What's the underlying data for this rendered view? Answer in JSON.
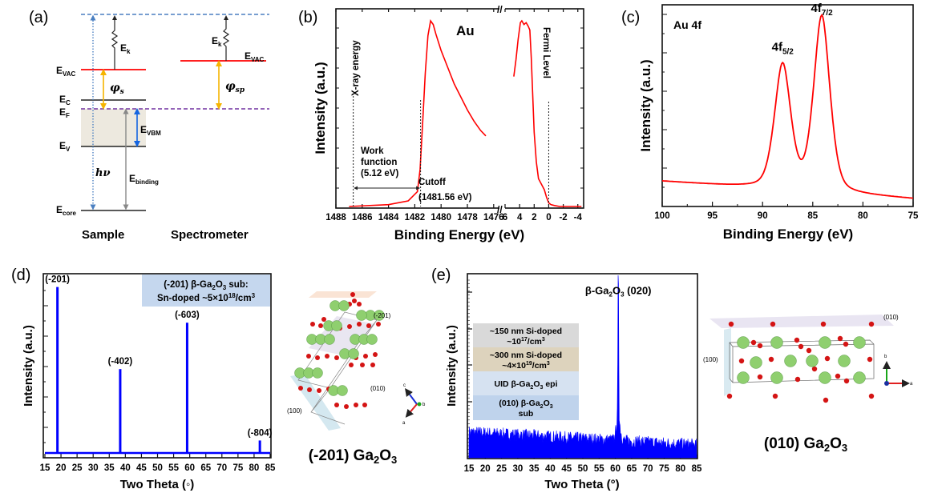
{
  "figure": {
    "panels": [
      "(a)",
      "(b)",
      "(c)",
      "(d)",
      "(e)"
    ]
  },
  "colors": {
    "xps_line": "#ff0000",
    "xrd_line": "#0000ff",
    "vacuum_level": "#ff0000",
    "work_function_arrow": "#f5b400",
    "fermi_dashed": "#7030a0",
    "top_dashed": "#4a7fc1",
    "vbm_arrow": "#1565e0",
    "binding_arrow": "#888888",
    "band_fill": "#ede9df",
    "label_box_blue": "#c5d7ee",
    "layer_gray": "#d9d9d9",
    "layer_tan": "#ddd3bd",
    "layer_lightblue": "#d6e2f1",
    "layer_blue": "#bfd3ec"
  },
  "energy_diagram": {
    "levels_sample": [
      "E_VAC",
      "E_C",
      "E_F",
      "E_V",
      "E_core"
    ],
    "labels": {
      "evac": "E",
      "evac_sub": "VAC",
      "ec": "E",
      "ec_sub": "C",
      "ef": "E",
      "ef_sub": "F",
      "ev": "E",
      "ev_sub": "V",
      "ecore": "E",
      "ecore_sub": "core",
      "ek": "E",
      "ek_sub": "k",
      "evbm": "E",
      "evbm_sub": "VBM",
      "ebind": "E",
      "ebind_sub": "binding",
      "phi_s": "φ",
      "phi_s_sub": "s",
      "phi_sp": "φ",
      "phi_sp_sub": "sp",
      "hv": "hν"
    },
    "captions": {
      "sample": "Sample",
      "spectrometer": "Spectrometer"
    }
  },
  "chart_data": [
    {
      "id": "b",
      "type": "line",
      "title": "Au",
      "xlabel": "Binding Energy (eV)",
      "ylabel": "Intensity (a.u.)",
      "broken_x_axis": true,
      "segments": [
        {
          "xlim": [
            1488,
            1475.5
          ],
          "ticks": [
            1488,
            1486,
            1484,
            1482,
            1480,
            1478,
            1476
          ],
          "tick_labels": [
            "1488",
            "1486",
            "1484",
            "1482",
            "1480",
            "1478",
            "1476"
          ],
          "x": [
            1487,
            1484,
            1482.5,
            1481.8,
            1481.6,
            1481.4,
            1481.2,
            1481.0,
            1480.8,
            1480.6,
            1480.4,
            1480.0,
            1479.5,
            1479.0,
            1478.5,
            1478.0,
            1477.5,
            1477.0,
            1476.6
          ],
          "y": [
            0.0,
            0.01,
            0.03,
            0.08,
            0.2,
            0.45,
            0.72,
            0.92,
            1.0,
            0.98,
            0.93,
            0.84,
            0.75,
            0.66,
            0.59,
            0.52,
            0.46,
            0.41,
            0.38
          ]
        },
        {
          "xlim": [
            6,
            -4.8
          ],
          "ticks": [
            6,
            4,
            2,
            0,
            -2,
            -4
          ],
          "tick_labels": [
            "6",
            "4",
            "2",
            "0",
            "-2",
            "-4"
          ],
          "x": [
            4.8,
            4.5,
            4.2,
            3.9,
            3.7,
            3.4,
            3.1,
            2.8,
            2.6,
            2.4,
            2.2,
            2.0,
            1.7,
            1.4,
            1.0,
            0.6,
            0.3,
            0.0,
            -0.3,
            -0.8,
            -1.5,
            -4.5
          ],
          "y": [
            0.7,
            0.79,
            0.9,
            0.99,
            1.0,
            0.98,
            0.99,
            0.97,
            0.95,
            0.8,
            0.6,
            0.4,
            0.24,
            0.15,
            0.12,
            0.09,
            0.05,
            0.02,
            0.01,
            0.005,
            0.0,
            0.0
          ]
        }
      ],
      "annotations": {
        "xray": "X-ray energy",
        "fermi": "Fermi Level",
        "wf1": "Work",
        "wf2": "function",
        "wf3": "(5.12 eV)",
        "cutoff1": "Cutoff",
        "cutoff2": "(1481.56 eV)"
      },
      "cutoff_eV": 1481.56,
      "work_function_eV": 5.12
    },
    {
      "id": "c",
      "type": "line",
      "title": "Au 4f",
      "xlabel": "Binding Energy (eV)",
      "ylabel": "Intensity (a.u.)",
      "xlim": [
        100,
        75
      ],
      "ticks": [
        100,
        95,
        90,
        85,
        80,
        75
      ],
      "tick_labels": [
        "100",
        "95",
        "90",
        "85",
        "80",
        "75"
      ],
      "peaks": [
        {
          "label": "4f",
          "sub": "5/2",
          "x": 88.0,
          "y": 0.73
        },
        {
          "label": "4f",
          "sub": "7/2",
          "x": 84.1,
          "y": 0.93
        }
      ],
      "baseline_high_be": 0.12,
      "baseline_low_be": 0.03,
      "valley": {
        "x": 86.2,
        "y": 0.25
      }
    },
    {
      "id": "d",
      "type": "bar",
      "xlabel": "Two Theta (◦)",
      "ylabel": "Intensity (a.u.)",
      "xlim": [
        15,
        85
      ],
      "ticks": [
        15,
        20,
        25,
        30,
        35,
        40,
        45,
        50,
        55,
        60,
        65,
        70,
        75,
        80,
        85
      ],
      "tick_labels": [
        "15",
        "20",
        "25",
        "30",
        "35",
        "40",
        "45",
        "50",
        "55",
        "60",
        "65",
        "70",
        "75",
        "80",
        "85"
      ],
      "peaks": [
        {
          "label": "(-201)",
          "x": 18.9,
          "y": 0.93
        },
        {
          "label": "(-402)",
          "x": 38.4,
          "y": 0.47
        },
        {
          "label": "(-603)",
          "x": 59.2,
          "y": 0.73
        },
        {
          "label": "(-804)",
          "x": 81.8,
          "y": 0.07
        }
      ],
      "legend_box": {
        "line1_pre": "(-201) β-Ga",
        "line1_sub1": "2",
        "line1_mid": "O",
        "line1_sub2": "3",
        "line1_post": " sub:",
        "line2_pre": "Sn-doped ~5×10",
        "line2_sup": "18",
        "line2_post": "/cm",
        "line2_sup2": "3"
      },
      "legend_placement": "top-right"
    },
    {
      "id": "e",
      "type": "area",
      "xlabel": "Two Theta (°)",
      "ylabel": "Intensity (a.u.)",
      "xlim": [
        15,
        85
      ],
      "ticks": [
        15,
        20,
        25,
        30,
        35,
        40,
        45,
        50,
        55,
        60,
        65,
        70,
        75,
        80,
        85
      ],
      "tick_labels": [
        "15",
        "20",
        "25",
        "30",
        "35",
        "40",
        "45",
        "50",
        "55",
        "60",
        "65",
        "70",
        "75",
        "80",
        "85"
      ],
      "log_scale": true,
      "peak": {
        "label_pre": "β-Ga",
        "sub1": "2",
        "mid": "O",
        "sub2": "3",
        "label_post": " (020)",
        "x": 60.9,
        "y": 0.85
      },
      "background_start": 0.14,
      "background_end": 0.07,
      "layers": [
        {
          "l1": "~150 nm Si-doped",
          "l2a": "~10",
          "l2sup": "17",
          "l2b": "/cm",
          "l2sup2": "3"
        },
        {
          "l1": "~300 nm Si-doped",
          "l2a": "~4×10",
          "l2sup": "19",
          "l2b": "/cm",
          "l2sup2": "3"
        },
        {
          "l1a": "UID β-Ga",
          "l1s1": "2",
          "l1m": "O",
          "l1s2": "3",
          "l1b": " epi"
        },
        {
          "l1a": "(010) β-Ga",
          "l1s1": "2",
          "l1m": "O",
          "l1s2": "3",
          "l2": "sub"
        }
      ]
    }
  ],
  "crystals": {
    "left": {
      "planes": [
        "(-201)",
        "(010)",
        "(100)"
      ],
      "axes": [
        "c",
        "b",
        "a"
      ],
      "caption_pre": "(-201) Ga",
      "caption_sub1": "2",
      "caption_mid": "O",
      "caption_sub2": "3"
    },
    "right": {
      "planes": [
        "(010)",
        "(100)"
      ],
      "axes": [
        "b",
        "a"
      ],
      "caption_pre": "(010) Ga",
      "caption_sub1": "2",
      "caption_mid": "O",
      "caption_sub2": "3"
    }
  }
}
